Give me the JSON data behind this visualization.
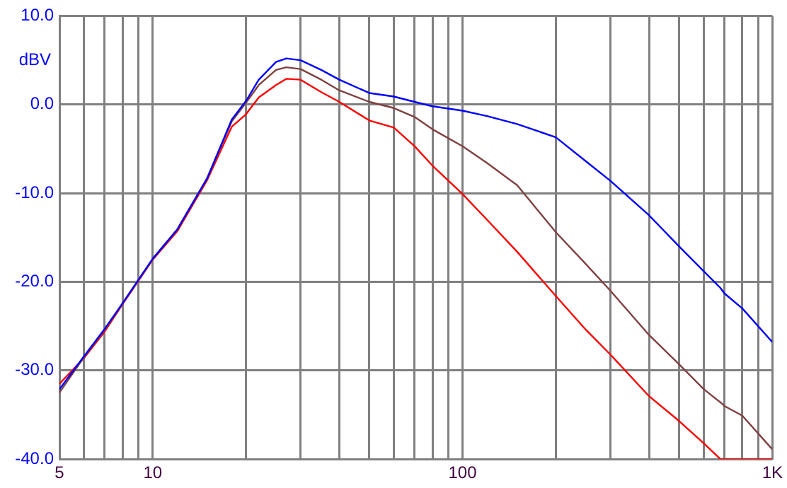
{
  "chart_data": {
    "type": "line",
    "ylabel": "dBV",
    "log": "x",
    "grid": true,
    "marker": "none",
    "line_style": "solid",
    "x": [
      5,
      6,
      7,
      8,
      10,
      12,
      15,
      18,
      20,
      22,
      25,
      27,
      30,
      35,
      40,
      50,
      60,
      70,
      80,
      100,
      120,
      150,
      200,
      250,
      300,
      400,
      500,
      600,
      680,
      700,
      800,
      1000
    ],
    "series": [
      {
        "color": "#0000ff",
        "values": [
          -32.1,
          -28.4,
          -25.3,
          -22.4,
          -17.4,
          -14.1,
          -8.3,
          -1.7,
          0.4,
          2.8,
          4.8,
          5.2,
          5.0,
          3.9,
          2.8,
          1.3,
          0.9,
          0.3,
          -0.2,
          -0.7,
          -1.3,
          -2.2,
          -3.7,
          -6.4,
          -8.6,
          -12.5,
          -16.0,
          -18.8,
          -20.7,
          -21.3,
          -23.0,
          -26.8
        ]
      },
      {
        "color": "#804040",
        "values": [
          -32.5,
          -28.5,
          -25.4,
          -22.4,
          -17.4,
          -14.1,
          -8.3,
          -1.9,
          0.2,
          2.2,
          3.9,
          4.2,
          4.0,
          2.8,
          1.6,
          0.3,
          -0.4,
          -1.4,
          -2.8,
          -4.7,
          -6.6,
          -9.1,
          -14.4,
          -18.0,
          -21.0,
          -26.0,
          -29.3,
          -32.1,
          -33.6,
          -34.0,
          -35.1,
          -38.9
        ]
      },
      {
        "color": "#ff0000",
        "values": [
          -31.5,
          -28.6,
          -25.6,
          -22.5,
          -17.5,
          -14.3,
          -8.5,
          -2.5,
          -1.1,
          0.8,
          2.2,
          2.9,
          2.8,
          1.4,
          0.3,
          -1.8,
          -2.6,
          -4.7,
          -6.9,
          -10.1,
          -13.0,
          -16.6,
          -21.6,
          -25.4,
          -28.2,
          -32.9,
          -35.7,
          -38.2,
          -40,
          -40,
          -40,
          -40
        ]
      }
    ],
    "xlim": [
      5,
      1000
    ],
    "ylim": [
      -40,
      10
    ],
    "xticks": [
      5,
      {
        "value": 6,
        "label": null
      },
      {
        "value": 7,
        "label": null
      },
      {
        "value": 8,
        "label": null
      },
      {
        "value": 9,
        "label": null
      },
      10,
      {
        "value": 20,
        "label": null
      },
      {
        "value": 30,
        "label": null
      },
      {
        "value": 40,
        "label": null
      },
      {
        "value": 50,
        "label": null
      },
      {
        "value": 60,
        "label": null
      },
      {
        "value": 70,
        "label": null
      },
      {
        "value": 80,
        "label": null
      },
      {
        "value": 90,
        "label": null
      },
      100,
      {
        "value": 200,
        "label": null
      },
      {
        "value": 300,
        "label": null
      },
      {
        "value": 400,
        "label": null
      },
      {
        "value": 500,
        "label": null
      },
      {
        "value": 600,
        "label": null
      },
      {
        "value": 700,
        "label": null
      },
      {
        "value": 800,
        "label": null
      },
      {
        "value": 900,
        "label": null
      },
      {
        "value": 1000,
        "label": "1K"
      }
    ],
    "yticks": [
      {
        "value": 10,
        "label": "10.0"
      },
      {
        "value": 0,
        "label": "0.0"
      },
      {
        "value": -10,
        "label": "-10.0"
      },
      {
        "value": -20,
        "label": "-20.0"
      },
      {
        "value": -30,
        "label": "-30.0"
      },
      {
        "value": -40,
        "label": "-40.0"
      }
    ]
  }
}
